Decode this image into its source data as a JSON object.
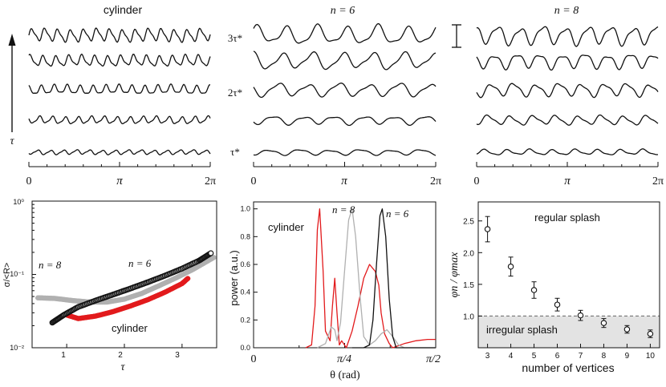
{
  "panels_top": [
    {
      "title": "cylinder",
      "axis_ticks": [
        "0",
        "π",
        "2π"
      ]
    },
    {
      "title": "n = 6",
      "axis_ticks": [
        "0",
        "π",
        "2π"
      ]
    },
    {
      "title": "n = 8",
      "axis_ticks": [
        "0",
        "π",
        "2π"
      ]
    }
  ],
  "top_labels": {
    "time_axis": "τ",
    "row_labels": [
      "3τ*",
      "2τ*",
      "τ*"
    ]
  },
  "chart_data": [
    {
      "type": "line",
      "panel": "perimeter profiles",
      "titles": [
        "cylinder",
        "n = 6",
        "n = 8"
      ],
      "xlabel": "",
      "ylabel": "τ",
      "x_ticks": [
        "0",
        "π",
        "2π"
      ],
      "xlim": [
        0,
        6.2832
      ],
      "rows": 5,
      "row_labels": [
        "3τ*",
        "2τ*",
        "τ*"
      ],
      "waves_per_turn": [
        14,
        6,
        8
      ]
    },
    {
      "type": "scatter",
      "panel": "roughness vs time",
      "xlabel": "τ",
      "ylabel": "σ/<R>",
      "xlim": [
        0.4,
        3.6
      ],
      "ylim": [
        0.01,
        1
      ],
      "yscale": "log",
      "x_ticks": [
        "1",
        "2",
        "3"
      ],
      "y_ticks": [
        "10⁰",
        "10⁻¹",
        "10⁻²"
      ],
      "series": [
        {
          "name": "n = 6",
          "color": "#111111",
          "x": [
            0.75,
            0.95,
            1.2,
            1.5,
            1.8,
            2.1,
            2.4,
            2.7,
            3.0,
            3.3,
            3.5
          ],
          "y": [
            0.022,
            0.028,
            0.036,
            0.044,
            0.053,
            0.064,
            0.078,
            0.096,
            0.12,
            0.155,
            0.195
          ]
        },
        {
          "name": "n = 8",
          "color": "#b0b0b0",
          "x": [
            0.5,
            0.8,
            1.1,
            1.4,
            1.7,
            2.0,
            2.3,
            2.6,
            2.9,
            3.2,
            3.55
          ],
          "y": [
            0.048,
            0.047,
            0.044,
            0.042,
            0.042,
            0.046,
            0.055,
            0.07,
            0.09,
            0.118,
            0.17
          ]
        },
        {
          "name": "cylinder",
          "color": "#e21a1c",
          "x": [
            1.0,
            1.2,
            1.5,
            1.8,
            2.1,
            2.4,
            2.7,
            3.0,
            3.1
          ],
          "y": [
            0.028,
            0.025,
            0.027,
            0.031,
            0.037,
            0.045,
            0.057,
            0.075,
            0.088
          ]
        }
      ]
    },
    {
      "type": "line",
      "panel": "power spectrum",
      "xlabel": "θ (rad)",
      "ylabel": "power (a.u.)",
      "xlim": [
        0,
        1.5708
      ],
      "ylim": [
        0,
        1.05
      ],
      "x_ticks": [
        "0",
        "π/4",
        "π/2"
      ],
      "y_ticks": [
        "0.0",
        "0.2",
        "0.4",
        "0.6",
        "0.8",
        "1.0"
      ],
      "series": [
        {
          "name": "cylinder",
          "color": "#e21a1c",
          "x": [
            0.45,
            0.5,
            0.53,
            0.55,
            0.57,
            0.6,
            0.62,
            0.66,
            0.68,
            0.7,
            0.72,
            0.74,
            0.76,
            0.8,
            0.85,
            0.9,
            0.95,
            1.0,
            1.05,
            1.08,
            1.1,
            1.13,
            1.17,
            1.2,
            1.3,
            1.4,
            1.5,
            1.57
          ],
          "y": [
            0.0,
            0.02,
            0.3,
            0.85,
            1.0,
            0.55,
            0.12,
            0.05,
            0.3,
            0.5,
            0.25,
            0.02,
            0.05,
            0.0,
            0.12,
            0.3,
            0.5,
            0.6,
            0.55,
            0.45,
            0.25,
            0.1,
            0.03,
            0.0,
            0.03,
            0.05,
            0.06,
            0.06
          ]
        },
        {
          "name": "n = 8",
          "color": "#b0b0b0",
          "x": [
            0.55,
            0.62,
            0.67,
            0.7,
            0.72,
            0.75,
            0.78,
            0.82,
            0.85,
            0.88,
            0.92,
            0.95,
            1.0,
            1.05,
            1.1,
            1.15,
            1.2,
            1.25,
            1.3,
            1.57
          ],
          "y": [
            0.0,
            0.03,
            0.15,
            0.13,
            0.05,
            0.18,
            0.5,
            0.92,
            1.0,
            0.8,
            0.35,
            0.08,
            0.02,
            0.05,
            0.1,
            0.13,
            0.08,
            0.02,
            0.0,
            0.0
          ]
        },
        {
          "name": "n = 6",
          "color": "#111111",
          "x": [
            0.85,
            0.95,
            1.0,
            1.03,
            1.06,
            1.09,
            1.11,
            1.14,
            1.17,
            1.2,
            1.23,
            1.27,
            1.3,
            1.35,
            1.4,
            1.57
          ],
          "y": [
            0.0,
            0.0,
            0.02,
            0.2,
            0.6,
            0.95,
            1.0,
            0.8,
            0.35,
            0.08,
            0.0,
            0.0,
            0.0,
            0.0,
            0.0,
            0.0
          ]
        }
      ]
    },
    {
      "type": "scatter",
      "panel": "splash regime",
      "xlabel": "number of vertices",
      "ylabel": "φn / φmax",
      "xlim": [
        2.6,
        10.4
      ],
      "ylim": [
        0.5,
        2.8
      ],
      "x_ticks": [
        "3",
        "4",
        "5",
        "6",
        "7",
        "8",
        "9",
        "10"
      ],
      "y_ticks": [
        "1.0",
        "1.5",
        "2.0",
        "2.5"
      ],
      "threshold": 1.0,
      "x": [
        3,
        4,
        5,
        6,
        7,
        8,
        9,
        10
      ],
      "y": [
        2.37,
        1.78,
        1.41,
        1.18,
        1.01,
        0.89,
        0.79,
        0.72
      ],
      "err": [
        0.2,
        0.15,
        0.13,
        0.1,
        0.08,
        0.07,
        0.06,
        0.06
      ],
      "annotations": [
        "regular splash",
        "irregular splash"
      ]
    }
  ],
  "labels": {
    "rough_curve_n6": "n = 6",
    "rough_curve_n8": "n = 8",
    "rough_curve_cyl": "cylinder",
    "spec_cyl": "cylinder",
    "spec_n8": "n = 8",
    "spec_n6": "n = 6",
    "regular": "regular splash",
    "irregular": "irregular splash"
  }
}
